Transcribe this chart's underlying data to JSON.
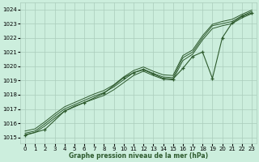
{
  "title": "Graphe pression niveau de la mer (hPa)",
  "background_color": "#cceedd",
  "grid_color": "#aaccbb",
  "line_color": "#2d5a2d",
  "xlim": [
    -0.5,
    23.5
  ],
  "ylim": [
    1014.6,
    1024.5
  ],
  "yticks": [
    1015,
    1016,
    1017,
    1018,
    1019,
    1020,
    1021,
    1022,
    1023,
    1024
  ],
  "xticks": [
    0,
    1,
    2,
    3,
    4,
    5,
    6,
    7,
    8,
    9,
    10,
    11,
    12,
    13,
    14,
    15,
    16,
    17,
    18,
    19,
    20,
    21,
    22,
    23
  ],
  "band_lines": [
    [
      1015.2,
      1015.35,
      1015.8,
      1016.35,
      1016.85,
      1017.2,
      1017.45,
      1017.7,
      1017.95,
      1018.35,
      1018.85,
      1019.35,
      1019.65,
      1019.35,
      1019.1,
      1019.05,
      1020.4,
      1020.85,
      1021.85,
      1022.65,
      1022.85,
      1023.0,
      1023.4,
      1023.7
    ],
    [
      1015.3,
      1015.45,
      1015.95,
      1016.5,
      1017.0,
      1017.3,
      1017.6,
      1017.9,
      1018.15,
      1018.55,
      1019.05,
      1019.55,
      1019.8,
      1019.5,
      1019.25,
      1019.2,
      1020.6,
      1021.0,
      1022.0,
      1022.85,
      1023.0,
      1023.15,
      1023.55,
      1023.85
    ],
    [
      1015.45,
      1015.6,
      1016.1,
      1016.65,
      1017.15,
      1017.45,
      1017.75,
      1018.05,
      1018.3,
      1018.7,
      1019.25,
      1019.7,
      1019.95,
      1019.65,
      1019.4,
      1019.35,
      1020.75,
      1021.15,
      1022.15,
      1022.95,
      1023.15,
      1023.3,
      1023.65,
      1023.95
    ]
  ],
  "marker_line_x": [
    0,
    2,
    4,
    6,
    8,
    10,
    11,
    12,
    13,
    14,
    15,
    16,
    17,
    18,
    19,
    20,
    21,
    22,
    23
  ],
  "marker_line_y": [
    1015.15,
    1015.55,
    1016.85,
    1017.45,
    1018.1,
    1019.2,
    1019.55,
    1019.75,
    1019.45,
    1019.15,
    1019.1,
    1019.85,
    1020.7,
    1021.0,
    1019.15,
    1022.0,
    1023.05,
    1023.5,
    1023.75
  ]
}
